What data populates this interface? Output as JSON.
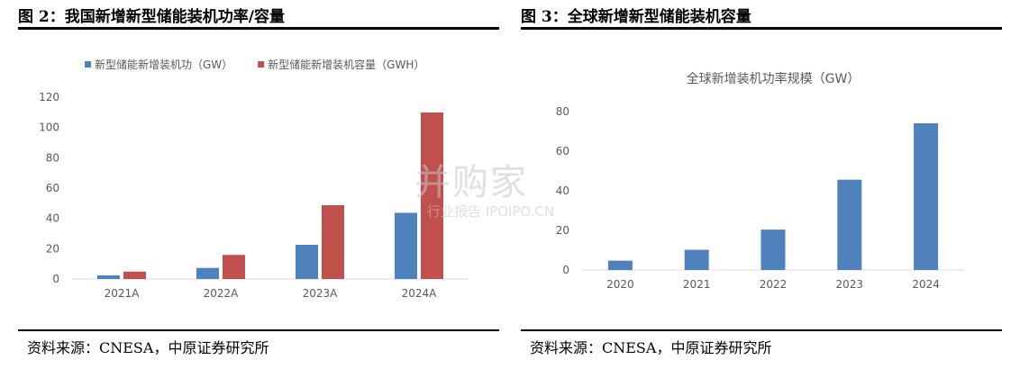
{
  "left_panel": {
    "figure_title": "图 2：我国新增新型储能装机功率/容量",
    "source": "资料来源：CNESA，中原证券研究所"
  },
  "right_panel": {
    "figure_title": "图 3：全球新增新型储能装机容量",
    "source": "资料来源：CNESA，中原证券研究所"
  },
  "watermark": {
    "main": "并购家",
    "sub": "行业报告 IPOIPO.CN"
  },
  "chart_data": [
    {
      "type": "bar",
      "title": "",
      "categories": [
        "2021A",
        "2022A",
        "2023A",
        "2024A"
      ],
      "series": [
        {
          "name": "新型储能新增装机功（GW）",
          "color": "#4f81bd",
          "values": [
            2.4,
            7.3,
            22.6,
            43.7
          ]
        },
        {
          "name": "新型储能新增装机容量（GWH）",
          "color": "#c0504d",
          "values": [
            4.9,
            15.9,
            48.7,
            109.9
          ]
        }
      ],
      "yticks": [
        0,
        20,
        40,
        60,
        80,
        100,
        120
      ],
      "ylim": [
        0,
        120
      ],
      "legend": "top-left",
      "grid": false
    },
    {
      "type": "bar",
      "title": "全球新增装机功率规模（GW）",
      "categories": [
        "2020",
        "2021",
        "2022",
        "2023",
        "2024"
      ],
      "series": [
        {
          "color": "#4f81bd",
          "values": [
            4.7,
            10.2,
            20.4,
            45.6,
            74.1
          ]
        }
      ],
      "yticks": [
        0,
        20,
        40,
        60,
        80
      ],
      "ylim": [
        0,
        80
      ],
      "grid": false
    }
  ]
}
